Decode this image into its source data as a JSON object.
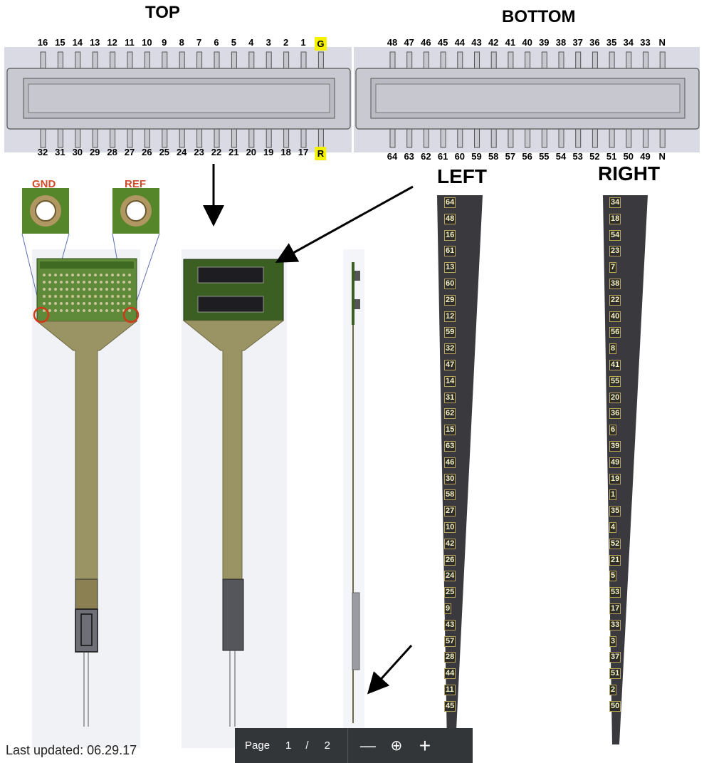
{
  "titles": {
    "top": "TOP",
    "bottom": "BOTTOM",
    "left": "LEFT",
    "right": "RIGHT"
  },
  "top_connector": {
    "upper_pins": [
      "16",
      "15",
      "14",
      "13",
      "12",
      "11",
      "10",
      "9",
      "8",
      "7",
      "6",
      "5",
      "4",
      "3",
      "2",
      "1",
      "G"
    ],
    "lower_pins": [
      "32",
      "31",
      "30",
      "29",
      "28",
      "27",
      "26",
      "25",
      "24",
      "23",
      "22",
      "21",
      "20",
      "19",
      "18",
      "17",
      "R"
    ]
  },
  "bottom_connector": {
    "upper_pins": [
      "48",
      "47",
      "46",
      "45",
      "44",
      "43",
      "42",
      "41",
      "40",
      "39",
      "38",
      "37",
      "36",
      "35",
      "34",
      "33",
      "N"
    ],
    "lower_pins": [
      "64",
      "63",
      "62",
      "61",
      "60",
      "59",
      "58",
      "57",
      "56",
      "55",
      "54",
      "53",
      "52",
      "51",
      "50",
      "49",
      "N"
    ]
  },
  "pads": {
    "gnd": "GND",
    "ref": "REF"
  },
  "left_shank": [
    "64",
    "48",
    "16",
    "61",
    "13",
    "60",
    "29",
    "12",
    "59",
    "32",
    "47",
    "14",
    "31",
    "62",
    "15",
    "63",
    "46",
    "30",
    "58",
    "27",
    "10",
    "42",
    "26",
    "24",
    "25",
    "9",
    "43",
    "57",
    "28",
    "44",
    "11",
    "45"
  ],
  "right_shank": [
    "34",
    "18",
    "54",
    "23",
    "7",
    "38",
    "22",
    "40",
    "56",
    "8",
    "41",
    "55",
    "20",
    "36",
    "6",
    "39",
    "49",
    "19",
    "1",
    "35",
    "4",
    "52",
    "21",
    "5",
    "53",
    "17",
    "33",
    "3",
    "37",
    "51",
    "2",
    "50"
  ],
  "colors": {
    "highlight": "#f4f200",
    "pad_label": "#d24a2a",
    "pcb_green": "#2f5a1e",
    "flex_tan": "#9a9464",
    "shank_dark": "#3a3a3e"
  },
  "footer": {
    "last_updated": "Last updated: 06.29.17"
  },
  "pdf_toolbar": {
    "page_label": "Page",
    "current_page": "1",
    "separator": "/",
    "total_pages": "2",
    "zoom_out_icon": "minus-icon",
    "zoom_fit_icon": "magnify-icon",
    "zoom_in_icon": "plus-icon"
  }
}
